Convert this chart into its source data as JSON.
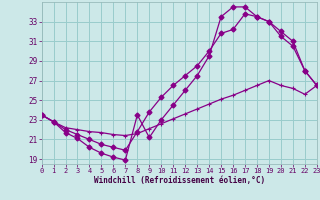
{
  "bg_color": "#cce8e8",
  "plot_bg": "#cce8e8",
  "line_color": "#880088",
  "grid_color": "#99cccc",
  "xlim": [
    0,
    23
  ],
  "ylim": [
    18.5,
    35.0
  ],
  "ytick_vals": [
    19,
    21,
    23,
    25,
    27,
    29,
    31,
    33
  ],
  "xtick_vals": [
    0,
    1,
    2,
    3,
    4,
    5,
    6,
    7,
    8,
    9,
    10,
    11,
    12,
    13,
    14,
    15,
    16,
    17,
    18,
    19,
    20,
    21,
    22,
    23
  ],
  "line1_x": [
    0,
    1,
    2,
    3,
    4,
    5,
    6,
    7,
    8,
    9,
    10,
    11,
    12,
    13,
    14,
    15,
    16,
    17,
    18,
    19,
    20,
    21,
    22,
    23
  ],
  "line1_y": [
    23.5,
    22.8,
    21.7,
    21.1,
    20.2,
    19.6,
    19.2,
    18.9,
    23.5,
    21.2,
    23.0,
    24.5,
    26.0,
    27.5,
    29.5,
    33.5,
    34.5,
    34.5,
    33.5,
    33.0,
    31.5,
    30.5,
    28.0,
    26.5
  ],
  "line2_x": [
    0,
    1,
    2,
    3,
    4,
    5,
    6,
    7,
    8,
    9,
    10,
    11,
    12,
    13,
    14,
    15,
    16,
    17,
    18,
    19,
    20,
    21,
    22,
    23
  ],
  "line2_y": [
    23.5,
    22.8,
    22.0,
    21.5,
    21.0,
    20.5,
    20.2,
    19.9,
    21.8,
    23.8,
    25.3,
    26.5,
    27.5,
    28.5,
    30.0,
    31.8,
    32.2,
    33.8,
    33.5,
    33.0,
    32.0,
    31.0,
    28.0,
    26.5
  ],
  "line3_x": [
    0,
    1,
    2,
    3,
    4,
    5,
    6,
    7,
    8,
    9,
    10,
    11,
    12,
    13,
    14,
    15,
    16,
    17,
    18,
    19,
    20,
    21,
    22,
    23
  ],
  "line3_y": [
    23.5,
    22.8,
    22.2,
    22.0,
    21.8,
    21.7,
    21.5,
    21.4,
    21.6,
    22.1,
    22.6,
    23.1,
    23.6,
    24.1,
    24.6,
    25.1,
    25.5,
    26.0,
    26.5,
    27.0,
    26.5,
    26.2,
    25.6,
    26.5
  ],
  "xlabel": "Windchill (Refroidissement éolien,°C)",
  "tick_color": "#660066",
  "label_color": "#440044",
  "tick_fontsize": 5.0,
  "xlabel_fontsize": 5.5
}
